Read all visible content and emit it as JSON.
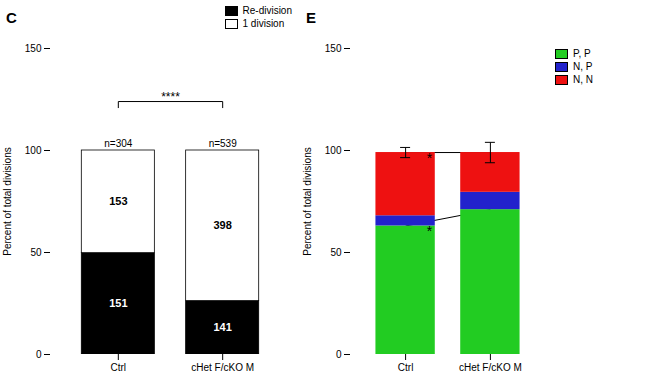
{
  "chart_data": [
    {
      "type": "bar",
      "stacked": true,
      "title": "C",
      "ylabel": "Percent of total divisions",
      "categories": [
        "Ctrl",
        "cHet F/cKO M"
      ],
      "ylim": [
        0,
        150
      ],
      "yticks": [
        0,
        50,
        100,
        150
      ],
      "grid": false,
      "legend": "upper right",
      "series": [
        {
          "name": "Re-division",
          "color": "#000000",
          "values": [
            49.67,
            26.16
          ],
          "counts": [
            151,
            141
          ]
        },
        {
          "name": "1 division",
          "color": "#ffffff",
          "values": [
            50.33,
            73.84
          ],
          "counts": [
            153,
            398
          ]
        }
      ],
      "n_labels": [
        "n=304",
        "n=539"
      ],
      "significance": "****"
    },
    {
      "type": "bar",
      "stacked": true,
      "title": "E",
      "ylabel": "Percent of total divisions",
      "categories": [
        "Ctrl",
        "cHet F/cKO M"
      ],
      "ylim": [
        0,
        150
      ],
      "yticks": [
        0,
        50,
        100,
        150
      ],
      "grid": false,
      "legend": "right",
      "series": [
        {
          "name": "P, P",
          "color": "#22cc22",
          "values": [
            63.0,
            71.0
          ]
        },
        {
          "name": "N, P",
          "color": "#2222cc",
          "values": [
            5.0,
            8.5
          ]
        },
        {
          "name": "N, N",
          "color": "#ee1111",
          "values": [
            31.0,
            19.5
          ]
        }
      ],
      "errors": [
        2.5,
        5.0
      ],
      "significance": [
        {
          "text": "*",
          "series": "N, N"
        },
        {
          "text": "*",
          "series": "P, P"
        }
      ]
    }
  ]
}
